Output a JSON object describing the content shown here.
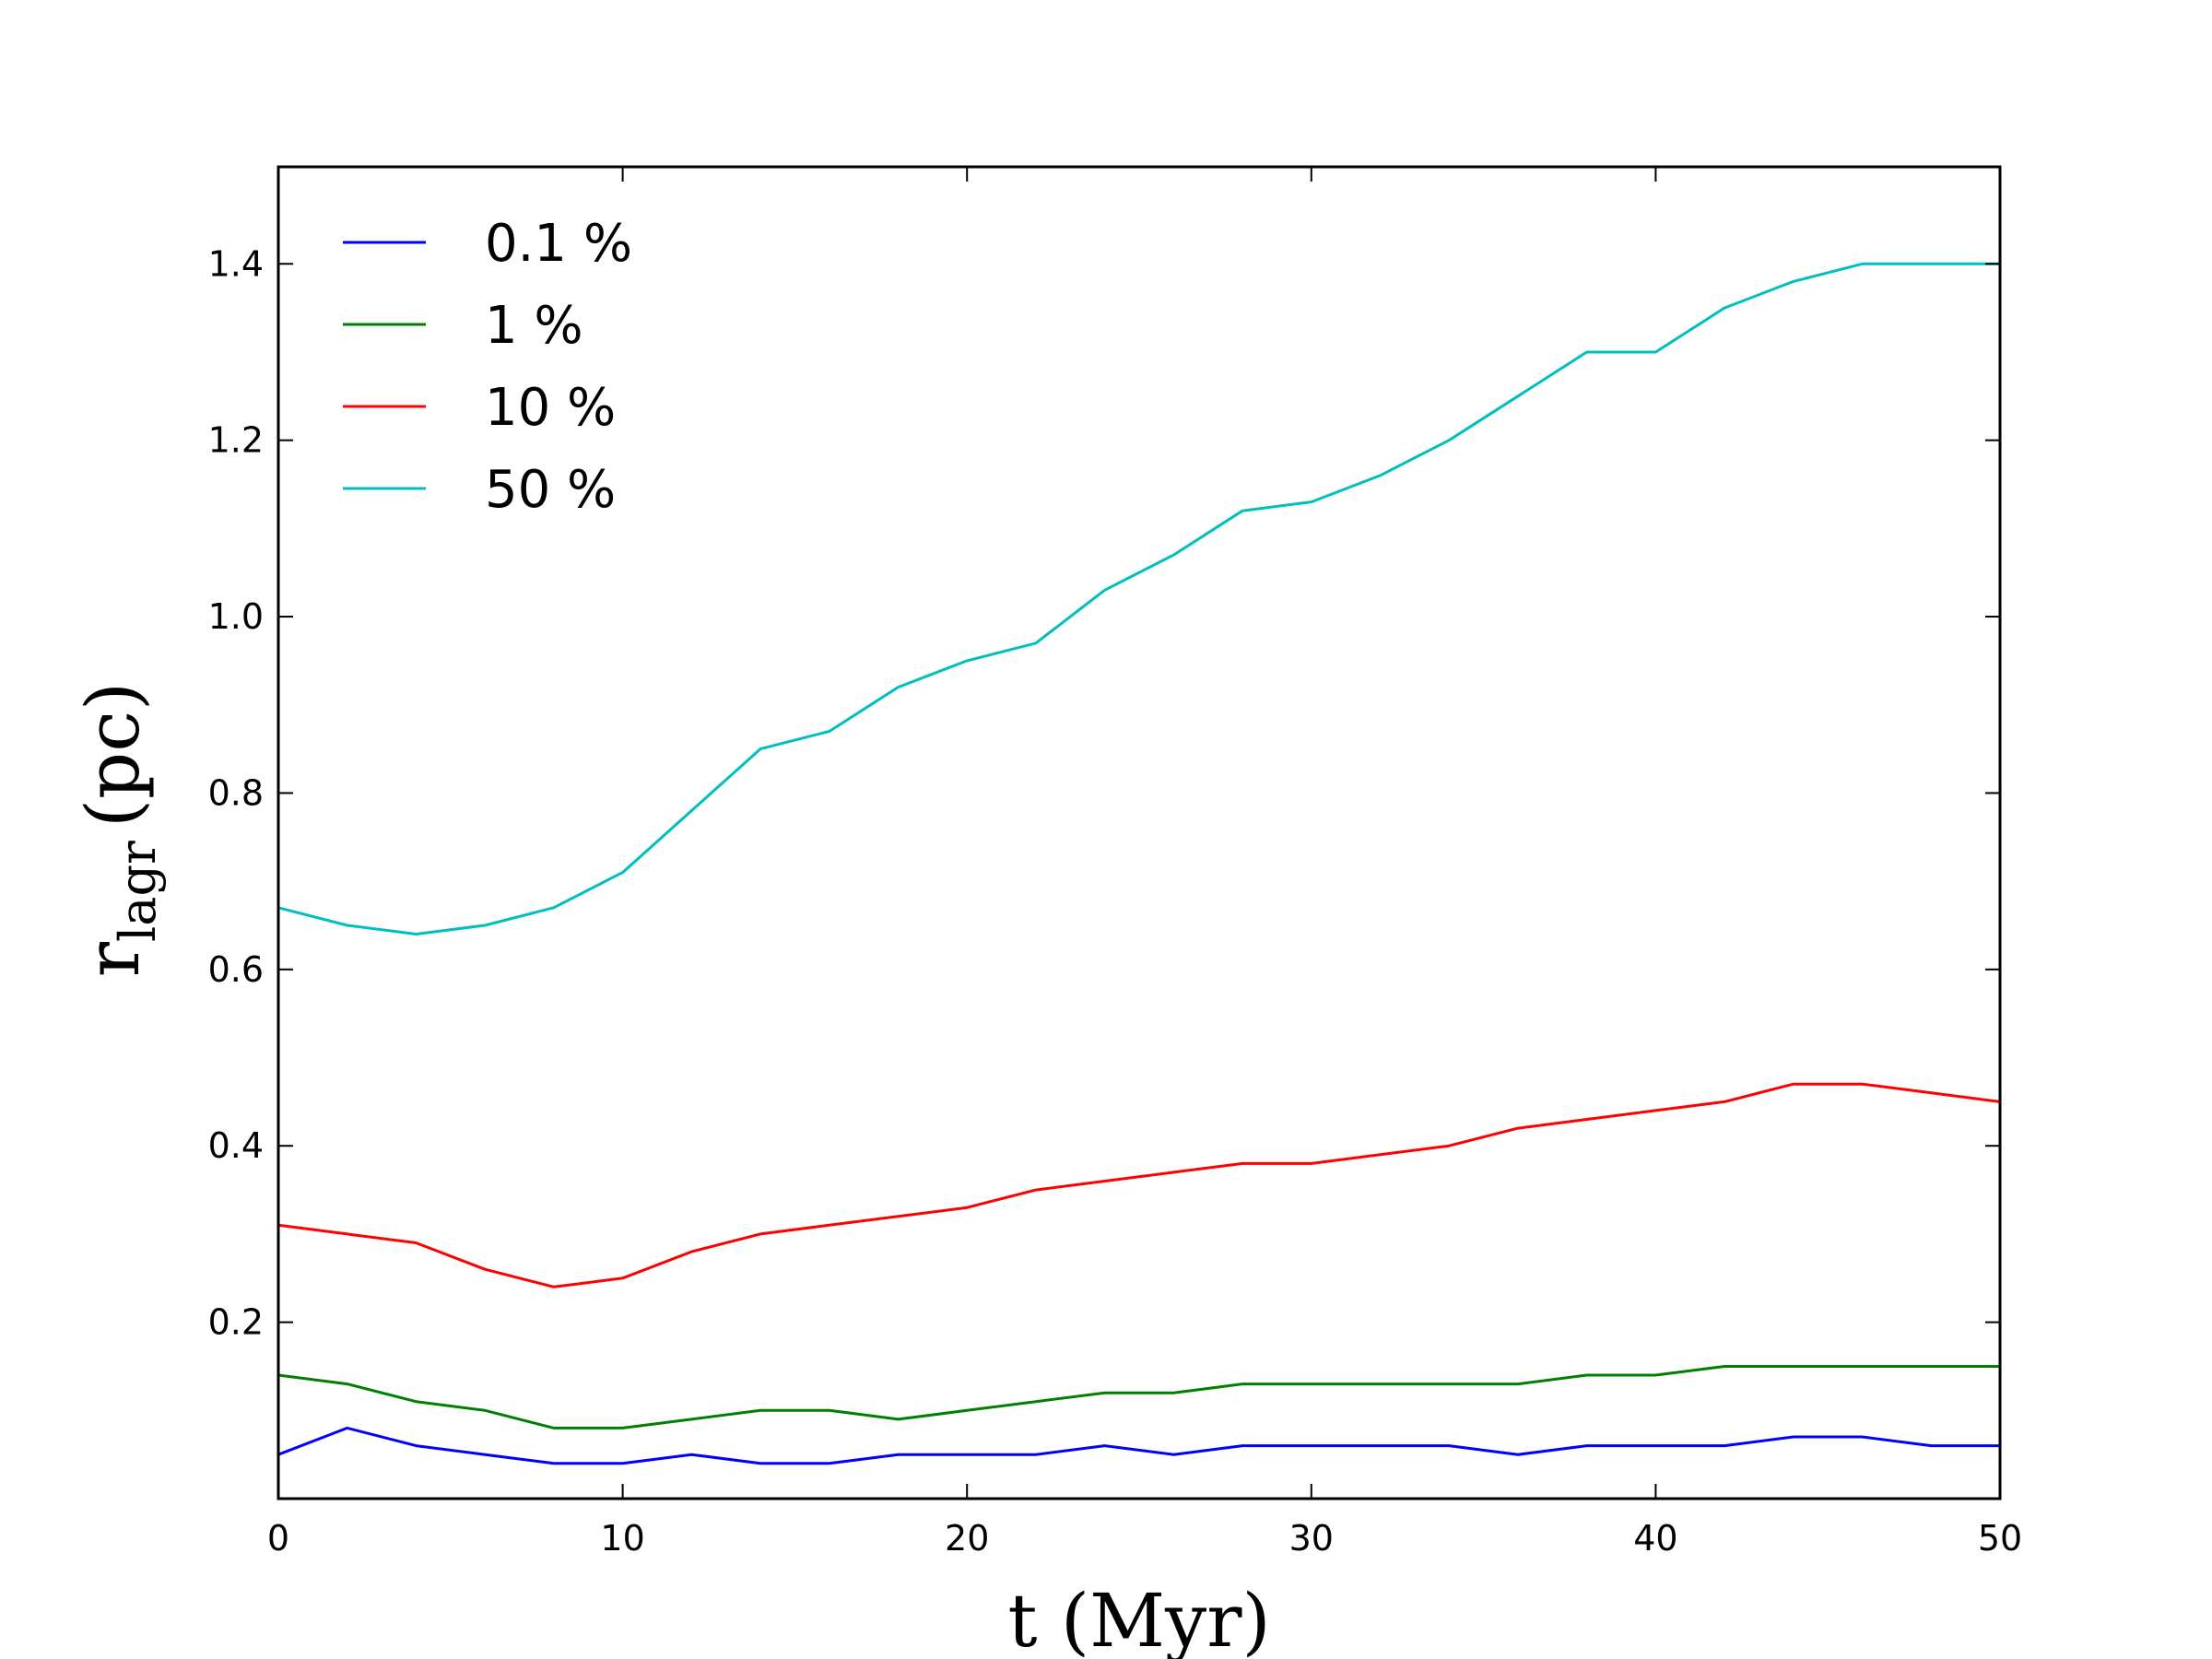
{
  "chart_data": {
    "type": "line",
    "xlabel": "t (Myr)",
    "ylabel": {
      "main": "r",
      "subscript": "lagr",
      "unit": "(pc)"
    },
    "xlim": [
      0,
      50
    ],
    "ylim": [
      0.0,
      1.51
    ],
    "xticks": [
      0,
      10,
      20,
      30,
      40,
      50
    ],
    "yticks": [
      0.2,
      0.4,
      0.6,
      0.8,
      1.0,
      1.2,
      1.4
    ],
    "ytick_labels": [
      "0.2",
      "0.4",
      "0.6",
      "0.8",
      "1.0",
      "1.2",
      "1.4"
    ],
    "grid": false,
    "legend_position": "top-left",
    "series": [
      {
        "name": "0.1 %",
        "color": "#0000ff",
        "x": [
          0,
          2,
          4,
          6,
          8,
          10,
          12,
          14,
          16,
          18,
          20,
          22,
          24,
          26,
          28,
          30,
          32,
          34,
          36,
          38,
          40,
          42,
          44,
          46,
          48,
          50
        ],
        "y": [
          0.05,
          0.08,
          0.06,
          0.05,
          0.04,
          0.04,
          0.05,
          0.04,
          0.04,
          0.05,
          0.05,
          0.05,
          0.06,
          0.05,
          0.06,
          0.06,
          0.06,
          0.06,
          0.05,
          0.06,
          0.06,
          0.06,
          0.07,
          0.07,
          0.06,
          0.06
        ]
      },
      {
        "name": "1 %",
        "color": "#008000",
        "x": [
          0,
          2,
          4,
          6,
          8,
          10,
          12,
          14,
          16,
          18,
          20,
          22,
          24,
          26,
          28,
          30,
          32,
          34,
          36,
          38,
          40,
          42,
          44,
          46,
          48,
          50
        ],
        "y": [
          0.14,
          0.13,
          0.11,
          0.1,
          0.08,
          0.08,
          0.09,
          0.1,
          0.1,
          0.09,
          0.1,
          0.11,
          0.12,
          0.12,
          0.13,
          0.13,
          0.13,
          0.13,
          0.13,
          0.14,
          0.14,
          0.15,
          0.15,
          0.15,
          0.15,
          0.15
        ]
      },
      {
        "name": "10 %",
        "color": "#ff0000",
        "x": [
          0,
          2,
          4,
          6,
          8,
          10,
          12,
          14,
          16,
          18,
          20,
          22,
          24,
          26,
          28,
          30,
          32,
          34,
          36,
          38,
          40,
          42,
          44,
          46,
          48,
          50
        ],
        "y": [
          0.31,
          0.3,
          0.29,
          0.26,
          0.24,
          0.25,
          0.28,
          0.3,
          0.31,
          0.32,
          0.33,
          0.35,
          0.36,
          0.37,
          0.38,
          0.38,
          0.39,
          0.4,
          0.42,
          0.43,
          0.44,
          0.45,
          0.47,
          0.47,
          0.46,
          0.45
        ]
      },
      {
        "name": "50 %",
        "color": "#00bfbf",
        "x": [
          0,
          2,
          4,
          6,
          8,
          10,
          12,
          14,
          16,
          18,
          20,
          22,
          24,
          26,
          28,
          30,
          32,
          34,
          36,
          38,
          40,
          42,
          44,
          46,
          48,
          50
        ],
        "y": [
          0.67,
          0.65,
          0.64,
          0.65,
          0.67,
          0.71,
          0.78,
          0.85,
          0.87,
          0.92,
          0.95,
          0.97,
          1.03,
          1.07,
          1.12,
          1.13,
          1.16,
          1.2,
          1.25,
          1.3,
          1.3,
          1.35,
          1.38,
          1.4,
          1.4,
          1.4
        ]
      }
    ]
  }
}
